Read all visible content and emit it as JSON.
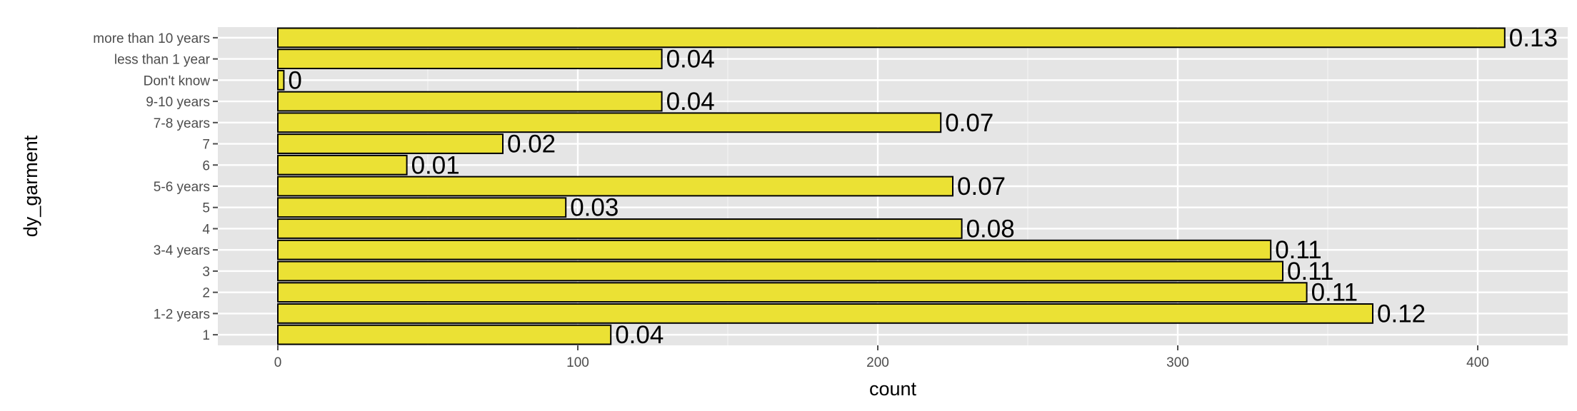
{
  "chart_data": {
    "type": "bar",
    "orientation": "horizontal",
    "xlabel": "count",
    "ylabel": "dy_garment",
    "xlim": [
      -20,
      430
    ],
    "x_ticks": [
      0,
      100,
      200,
      300,
      400
    ],
    "grid": true,
    "categories": [
      "1",
      "1-2 years",
      "2",
      "3",
      "3-4 years",
      "4",
      "5",
      "5-6 years",
      "6",
      "7",
      "7-8 years",
      "9-10 years",
      "Don't know",
      "less than 1 year",
      "more than 10 years"
    ],
    "values": [
      111,
      365,
      343,
      335,
      331,
      228,
      96,
      225,
      43,
      75,
      221,
      128,
      2,
      128,
      409
    ],
    "labels": [
      "0.04",
      "0.12",
      "0.11",
      "0.11",
      "0.11",
      "0.08",
      "0.03",
      "0.07",
      "0.01",
      "0.02",
      "0.07",
      "0.04",
      "0",
      "0.04",
      "0.13"
    ],
    "colors": {
      "bar_fill": "#ebe134",
      "bar_stroke": "#000000",
      "panel_bg": "#e5e5e5",
      "grid_major": "#ffffff",
      "grid_minor": "#f2f2f2"
    }
  }
}
